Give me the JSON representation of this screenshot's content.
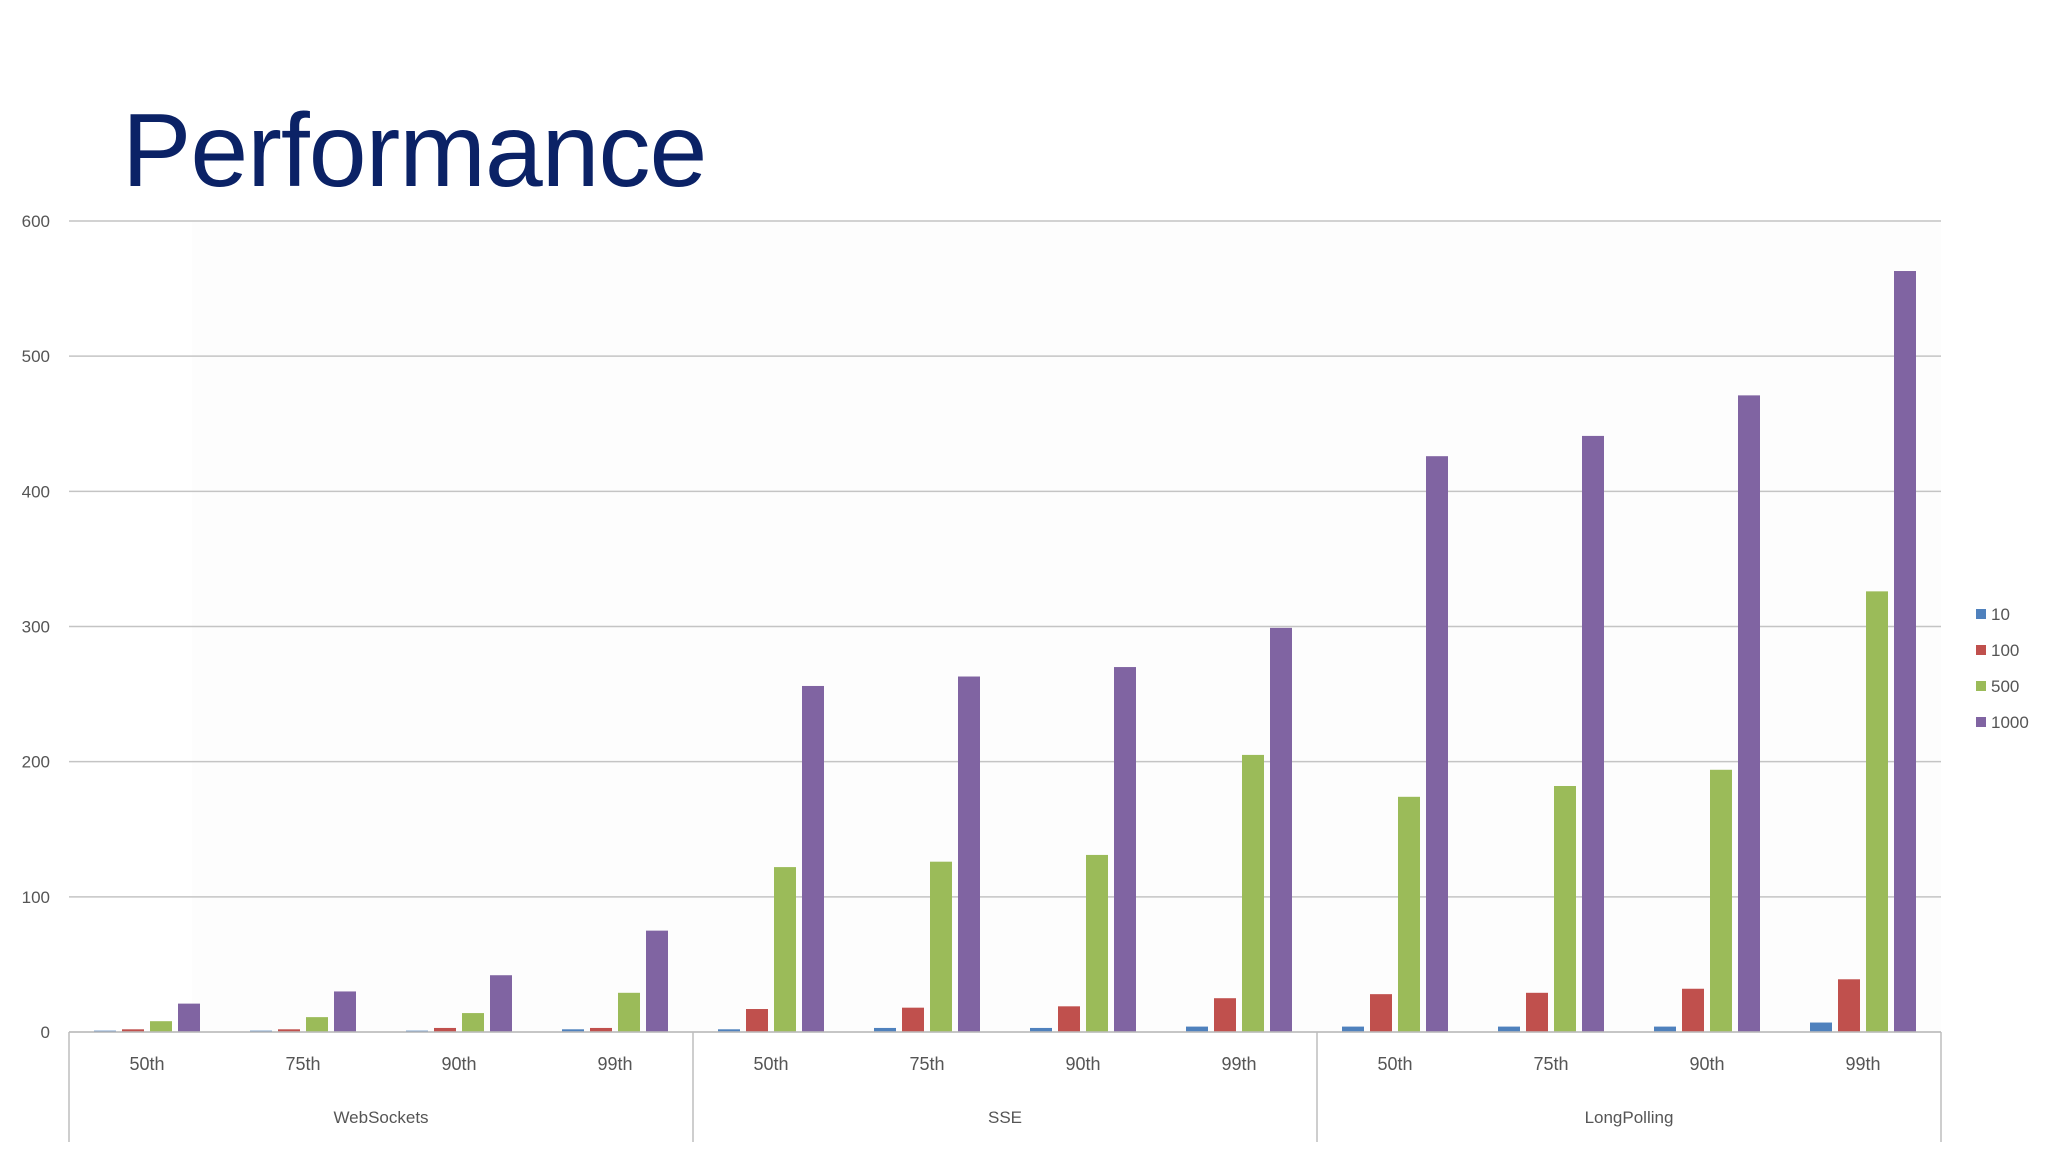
{
  "title": "Performance",
  "chart_data": {
    "type": "bar",
    "groups": [
      {
        "name": "WebSockets",
        "categories": [
          "50th",
          "75th",
          "90th",
          "99th"
        ]
      },
      {
        "name": "SSE",
        "categories": [
          "50th",
          "75th",
          "90th",
          "99th"
        ]
      },
      {
        "name": "LongPolling",
        "categories": [
          "50th",
          "75th",
          "90th",
          "99th"
        ]
      }
    ],
    "series": [
      {
        "name": "10",
        "color": "#4f81bd",
        "values": [
          1,
          1,
          1,
          2,
          2,
          3,
          3,
          4,
          4,
          4,
          4,
          7
        ]
      },
      {
        "name": "100",
        "color": "#c0504d",
        "values": [
          2,
          2,
          3,
          3,
          17,
          18,
          19,
          25,
          28,
          29,
          32,
          39
        ]
      },
      {
        "name": "500",
        "color": "#9bbb59",
        "values": [
          8,
          11,
          14,
          29,
          122,
          126,
          131,
          205,
          174,
          182,
          194,
          326
        ]
      },
      {
        "name": "1000",
        "color": "#8064a2",
        "values": [
          21,
          30,
          42,
          75,
          256,
          263,
          270,
          299,
          426,
          441,
          471,
          563
        ]
      }
    ],
    "yticks": [
      0,
      100,
      200,
      300,
      400,
      500,
      600
    ],
    "ylim": [
      0,
      600
    ],
    "grid": true,
    "legend": "right"
  }
}
